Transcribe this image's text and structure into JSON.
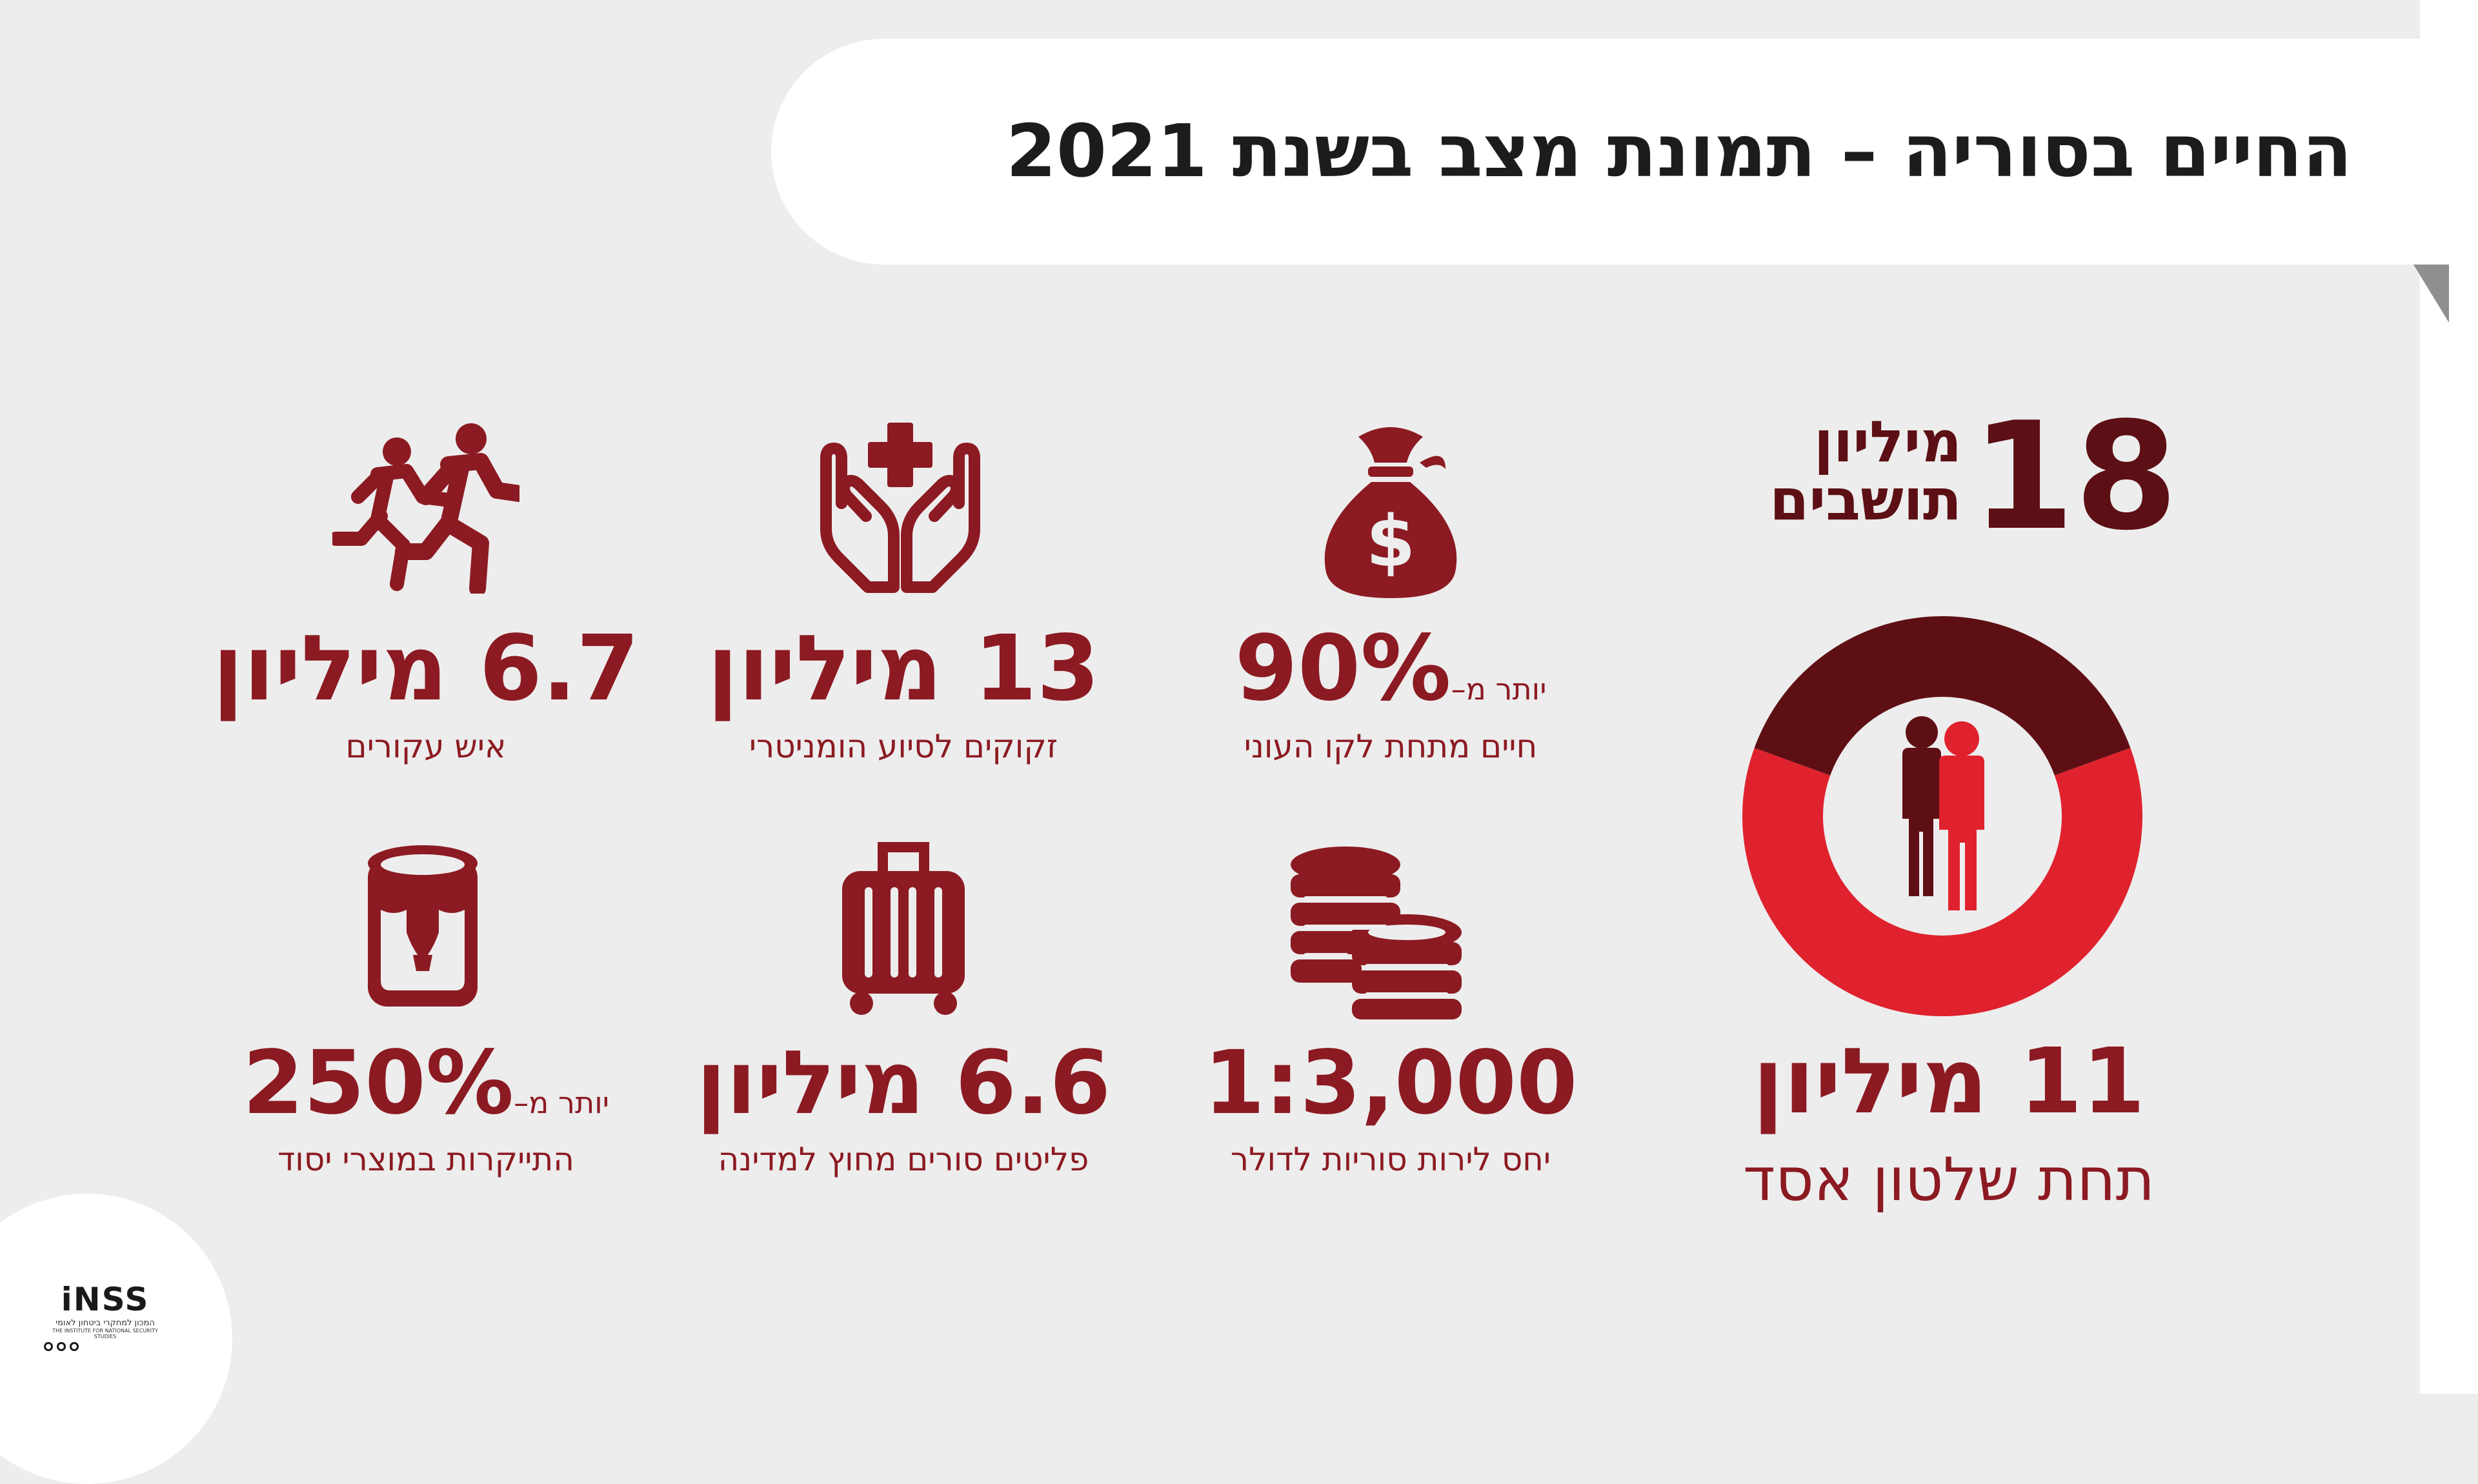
{
  "title": "החיים בסוריה – תמונת מצב בשנת 2021",
  "population": {
    "number": "18",
    "label_line1": "מיליון",
    "label_line2": "תושבים",
    "under_assad_value": "11 מיליון",
    "under_assad_label": "תחת שלטון אסד",
    "under_assad_fraction": 0.611,
    "colors": {
      "assad": "#e0222e",
      "other": "#5e0f14"
    }
  },
  "stats": [
    {
      "id": "poverty",
      "icon": "money-bag-icon",
      "prefix": "יותר מ–",
      "value": "90%",
      "label": "חיים מתחת לקו העוני"
    },
    {
      "id": "aid",
      "icon": "helping-hands-icon",
      "prefix": "",
      "value": "13 מיליון",
      "label": "זקוקים לסיוע הומניטרי"
    },
    {
      "id": "displaced",
      "icon": "running-people-icon",
      "prefix": "",
      "value": "6.7 מיליון",
      "label": "איש עקורים"
    },
    {
      "id": "currency",
      "icon": "coins-icon",
      "prefix": "",
      "value": "1:3,000",
      "label": "יחס לירות סוריות לדולר"
    },
    {
      "id": "refugees",
      "icon": "suitcase-icon",
      "prefix": "",
      "value": "6.6 מיליון",
      "label": "פליטים סורים מחוץ למדינה"
    },
    {
      "id": "prices",
      "icon": "food-can-icon",
      "prefix": "יותר מ–",
      "value": "250%",
      "label": "התייקרות במוצרי יסוד"
    }
  ],
  "logo": {
    "main": "iNSS",
    "hebrew": "המכון למחקרי ביטחון לאומי",
    "english": "THE INSTITUTE FOR NATIONAL SECURITY STUDIES"
  },
  "colors": {
    "primary": "#8c1a22",
    "dark": "#5c0f14",
    "accent": "#e0222e",
    "background": "#ededed"
  }
}
